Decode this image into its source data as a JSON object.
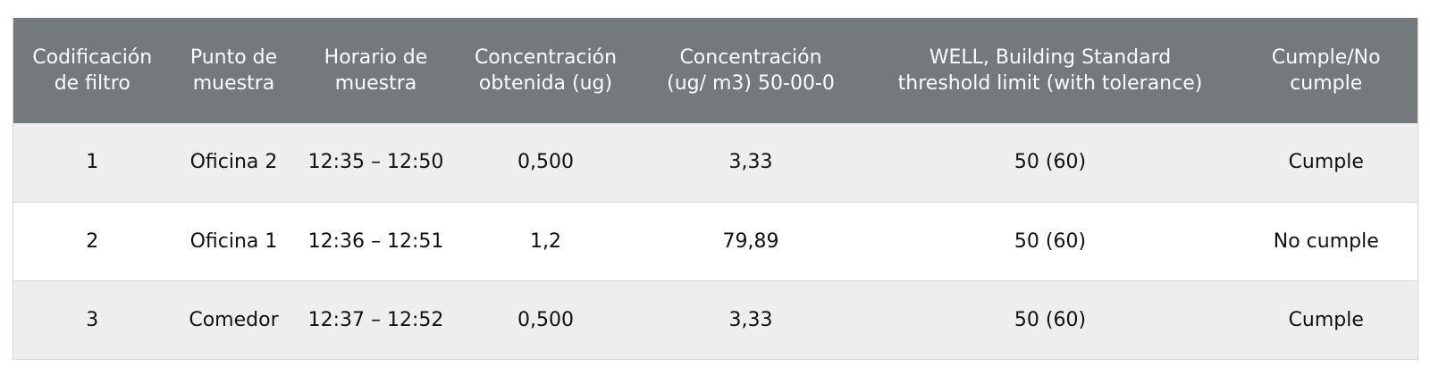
{
  "table": {
    "headers": [
      {
        "line1": "Codificación",
        "line2": "de filtro"
      },
      {
        "line1": "Punto de",
        "line2": "muestra"
      },
      {
        "line1": "Horario de",
        "line2": "muestra"
      },
      {
        "line1": "Concentración",
        "line2": "obtenida (ug)"
      },
      {
        "line1": "Concentración",
        "line2": "(ug/ m3) 50-00-0"
      },
      {
        "line1": "WELL, Building Standard",
        "line2": "threshold limit (with tolerance)"
      },
      {
        "line1": "Cumple/No",
        "line2": "cumple"
      }
    ],
    "rows": [
      [
        "1",
        "Oficina 2",
        "12:35 – 12:50",
        "0,500",
        "3,33",
        "50 (60)",
        "Cumple"
      ],
      [
        "2",
        "Oficina 1",
        "12:36 – 12:51",
        "1,2",
        "79,89",
        "50 (60)",
        "No cumple"
      ],
      [
        "3",
        "Comedor",
        "12:37 – 12:52",
        "0,500",
        "3,33",
        "50 (60)",
        "Cumple"
      ]
    ]
  },
  "colors": {
    "header_bg": "#747a7c",
    "row_odd_bg": "#eeeeee",
    "row_even_bg": "#ffffff"
  }
}
